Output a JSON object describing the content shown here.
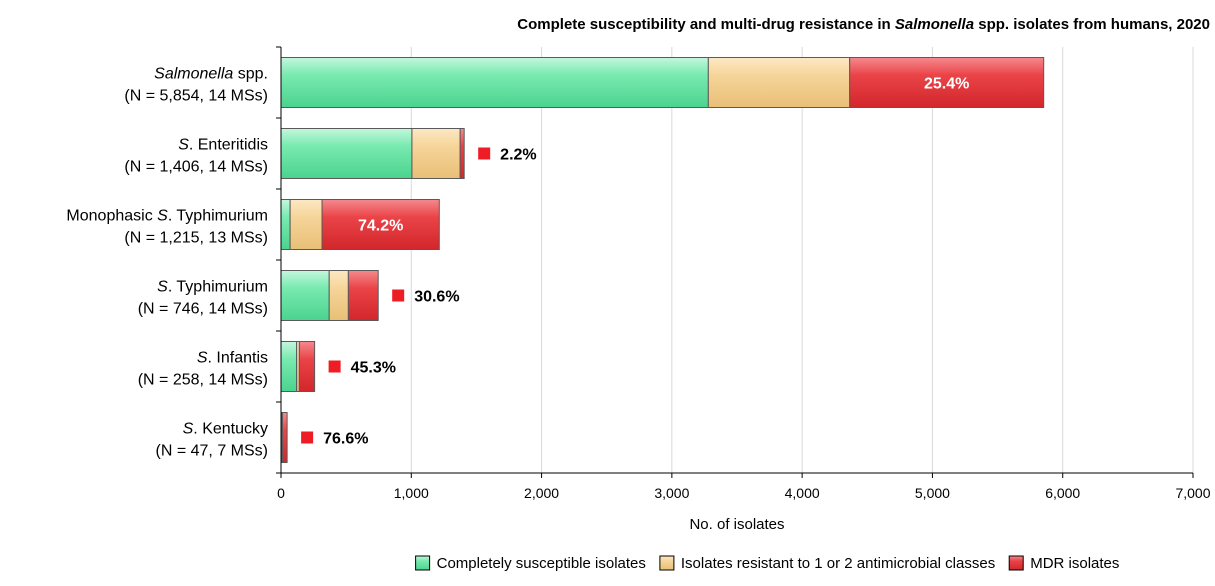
{
  "chart_data": {
    "type": "bar",
    "orientation": "horizontal",
    "stacked": true,
    "title": {
      "before": "Complete susceptibility and multi-drug resistance in ",
      "italic": "Salmonella",
      "after": " spp. isolates from humans, 2020"
    },
    "xlabel": "No. of isolates",
    "xlim": [
      0,
      7000
    ],
    "xticks": [
      0,
      1000,
      2000,
      3000,
      4000,
      5000,
      6000,
      7000
    ],
    "xtick_labels": [
      "0",
      "1,000",
      "2,000",
      "3,000",
      "4,000",
      "5,000",
      "6,000",
      "7,000"
    ],
    "grid": "vertical",
    "legend_position": "bottom",
    "categories": [
      {
        "name_italic": "Salmonella",
        "name_rest": " spp.",
        "detail": "(N = 5,854, 14 MSs)",
        "mdr_label": "25.4%",
        "mdr_label_inside": true
      },
      {
        "name_italic": "S",
        "name_rest": ". Enteritidis",
        "detail": "(N = 1,406, 14 MSs)",
        "mdr_label": "2.2%",
        "mdr_label_inside": false
      },
      {
        "name_prefix": "Monophasic ",
        "name_italic": "S",
        "name_rest": ". Typhimurium",
        "detail": "(N = 1,215, 13 MSs)",
        "mdr_label": "74.2%",
        "mdr_label_inside": true
      },
      {
        "name_italic": "S",
        "name_rest": ". Typhimurium",
        "detail": "(N = 746, 14 MSs)",
        "mdr_label": "30.6%",
        "mdr_label_inside": false
      },
      {
        "name_italic": "S",
        "name_rest": ". Infantis",
        "detail": "(N = 258, 14 MSs)",
        "mdr_label": "45.3%",
        "mdr_label_inside": false
      },
      {
        "name_italic": "S",
        "name_rest": ". Kentucky",
        "detail": "(N = 47, 7 MSs)",
        "mdr_label": "76.6%",
        "mdr_label_inside": false
      }
    ],
    "series": [
      {
        "name": "Completely susceptible isolates",
        "color": "#5fe3a1",
        "values": [
          3280,
          1005,
          70,
          370,
          120,
          8
        ]
      },
      {
        "name": "Isolates resistant to 1 or 2 antimicrobial classes",
        "color": "#f6cf8b",
        "values": [
          1085,
          370,
          245,
          147,
          21,
          3
        ]
      },
      {
        "name": "MDR isolates",
        "color": "#e8353a",
        "values": [
          1489,
          31,
          900,
          229,
          117,
          36
        ]
      }
    ],
    "marker_color": "#ee1c25"
  }
}
